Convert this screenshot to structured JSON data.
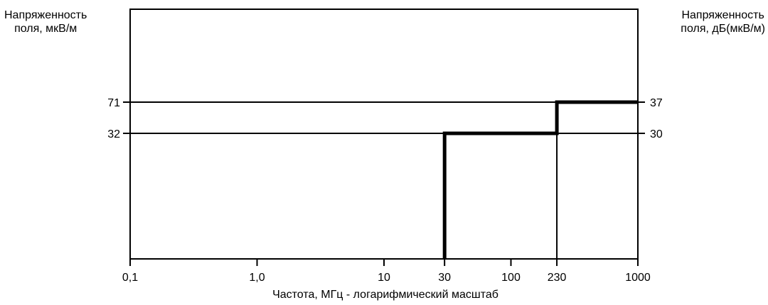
{
  "chart_data": {
    "type": "line",
    "xlabel": "Частота, МГц - логарифмический масштаб",
    "ylabel_left": [
      "Напряженность",
      "поля, мкВ/м"
    ],
    "ylabel_right": [
      "Напряженность",
      "поля, дБ(мкВ/м)"
    ],
    "x_scale": "log",
    "xlim": [
      0.1,
      1000
    ],
    "x_ticks": [
      {
        "value": 0.1,
        "label": "0,1"
      },
      {
        "value": 1,
        "label": "1,0"
      },
      {
        "value": 10,
        "label": "10"
      },
      {
        "value": 30,
        "label": "30"
      },
      {
        "value": 100,
        "label": "100"
      },
      {
        "value": 230,
        "label": "230"
      },
      {
        "value": 1000,
        "label": "1000"
      }
    ],
    "y_ticks_left": [
      {
        "value": 71,
        "label": "71"
      },
      {
        "value": 32,
        "label": "32"
      }
    ],
    "y_ticks_right": [
      {
        "value": 37,
        "label": "37"
      },
      {
        "value": 30,
        "label": "30"
      }
    ],
    "reference_lines_y": [
      71,
      32
    ],
    "reference_lines_x": [
      30,
      230
    ],
    "grid": false,
    "series": [
      {
        "step": true,
        "x": [
          30,
          30,
          230,
          230,
          1000
        ],
        "y": [
          0,
          32,
          32,
          71,
          71
        ]
      }
    ]
  }
}
